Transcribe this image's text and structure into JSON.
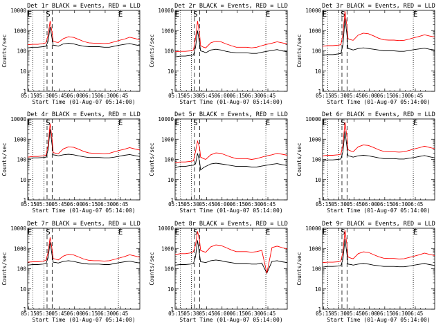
{
  "colors": {
    "events": "#000000",
    "lld": "#ff0000",
    "axes": "#000000",
    "background": "#ffffff"
  },
  "common": {
    "xlabel": "Start Time (01-Aug-07 05:14:00)",
    "ylabel": "Counts/sec",
    "xticks": [
      "05:15",
      "05:30",
      "05:45",
      "06:00",
      "06:15",
      "06:30",
      "06:45"
    ],
    "yticks": [
      "1",
      "10",
      "100",
      "1000",
      "10000"
    ],
    "markers": [
      "E",
      "S",
      "E"
    ]
  },
  "chart_data": [
    {
      "type": "line",
      "title": "Det 1r BLACK = Events, RED = LLD",
      "xlabel": "Start Time (01-Aug-07 05:14:00)",
      "ylabel": "Counts/sec",
      "yscale": "log",
      "ylim": [
        1,
        10000
      ],
      "xlim_minutes": [
        0,
        110
      ],
      "x_minutes": [
        0,
        5,
        10,
        15,
        18,
        20,
        22,
        24,
        25,
        28,
        30,
        35,
        40,
        45,
        50,
        55,
        60,
        65,
        70,
        75,
        80,
        85,
        90,
        95,
        100,
        105,
        110
      ],
      "series": [
        {
          "name": "Events",
          "values": [
            140,
            150,
            150,
            160,
            170,
            300,
            1500,
            400,
            190,
            180,
            170,
            220,
            240,
            220,
            190,
            170,
            160,
            160,
            160,
            150,
            150,
            170,
            190,
            210,
            230,
            200,
            180
          ]
        },
        {
          "name": "LLD",
          "values": [
            200,
            210,
            210,
            230,
            250,
            600,
            3000,
            800,
            300,
            270,
            260,
            400,
            500,
            460,
            370,
            290,
            250,
            240,
            240,
            230,
            240,
            280,
            330,
            380,
            470,
            410,
            350
          ]
        }
      ],
      "vlines": {
        "dotted_minutes": [
          5,
          16,
          89
        ],
        "dashed_minutes": [
          19,
          24
        ]
      }
    },
    {
      "type": "line",
      "title": "Det 2r BLACK = Events, RED = LLD",
      "xlabel": "Start Time (01-Aug-07 05:14:00)",
      "ylabel": "Counts/sec",
      "yscale": "log",
      "ylim": [
        1,
        10000
      ],
      "xlim_minutes": [
        0,
        110
      ],
      "x_minutes": [
        0,
        5,
        10,
        15,
        18,
        20,
        22,
        24,
        25,
        28,
        30,
        35,
        40,
        45,
        50,
        55,
        60,
        65,
        70,
        75,
        80,
        85,
        90,
        95,
        100,
        105,
        110
      ],
      "series": [
        {
          "name": "Events",
          "values": [
            50,
            55,
            55,
            60,
            62,
            150,
            1000,
            250,
            100,
            90,
            80,
            110,
            120,
            110,
            95,
            85,
            80,
            80,
            80,
            75,
            75,
            85,
            95,
            105,
            115,
            100,
            90
          ]
        },
        {
          "name": "LLD",
          "values": [
            90,
            95,
            95,
            100,
            110,
            400,
            3000,
            700,
            180,
            150,
            140,
            250,
            300,
            280,
            220,
            180,
            150,
            150,
            150,
            140,
            150,
            180,
            210,
            240,
            280,
            250,
            220
          ]
        }
      ],
      "vlines": {
        "dotted_minutes": [
          5,
          16,
          89
        ],
        "dashed_minutes": [
          19,
          24
        ]
      }
    },
    {
      "type": "line",
      "title": "Det 3r BLACK = Events, RED = LLD",
      "xlabel": "Start Time (01-Aug-07 05:14:00)",
      "ylabel": "Counts/sec",
      "yscale": "log",
      "ylim": [
        1,
        10000
      ],
      "xlim_minutes": [
        0,
        110
      ],
      "x_minutes": [
        0,
        5,
        10,
        15,
        18,
        20,
        22,
        24,
        25,
        28,
        30,
        35,
        40,
        45,
        50,
        55,
        60,
        65,
        70,
        75,
        80,
        85,
        90,
        95,
        100,
        105,
        110
      ],
      "series": [
        {
          "name": "Events",
          "values": [
            60,
            65,
            65,
            70,
            75,
            200,
            4000,
            600,
            130,
            120,
            110,
            130,
            140,
            130,
            120,
            110,
            100,
            100,
            100,
            95,
            95,
            105,
            115,
            125,
            135,
            120,
            110
          ]
        },
        {
          "name": "LLD",
          "values": [
            170,
            180,
            180,
            190,
            200,
            700,
            9000,
            1500,
            400,
            350,
            330,
            600,
            750,
            700,
            550,
            420,
            350,
            340,
            340,
            320,
            330,
            380,
            450,
            520,
            620,
            540,
            480
          ]
        }
      ],
      "vlines": {
        "dotted_minutes": [
          5,
          16,
          89
        ],
        "dashed_minutes": [
          19,
          24
        ]
      }
    },
    {
      "type": "line",
      "title": "Det 4r BLACK = Events, RED = LLD",
      "xlabel": "Start Time (01-Aug-07 05:14:00)",
      "ylabel": "Counts/sec",
      "yscale": "log",
      "ylim": [
        1,
        10000
      ],
      "xlim_minutes": [
        0,
        110
      ],
      "x_minutes": [
        0,
        5,
        10,
        15,
        18,
        20,
        22,
        24,
        25,
        28,
        30,
        35,
        40,
        45,
        50,
        55,
        60,
        65,
        70,
        75,
        80,
        85,
        90,
        95,
        100,
        105,
        110
      ],
      "series": [
        {
          "name": "Events",
          "values": [
            110,
            120,
            120,
            125,
            130,
            300,
            3000,
            500,
            170,
            160,
            150,
            170,
            180,
            170,
            150,
            135,
            125,
            125,
            125,
            120,
            120,
            130,
            145,
            160,
            175,
            155,
            140
          ]
        },
        {
          "name": "LLD",
          "values": [
            130,
            140,
            140,
            150,
            160,
            500,
            6000,
            1000,
            220,
            200,
            190,
            330,
            420,
            400,
            320,
            250,
            210,
            200,
            200,
            190,
            200,
            240,
            280,
            320,
            380,
            330,
            290
          ]
        }
      ],
      "vlines": {
        "dotted_minutes": [
          5,
          16,
          89
        ],
        "dashed_minutes": [
          19,
          24
        ]
      }
    },
    {
      "type": "line",
      "title": "Det 5r BLACK = Events, RED = LLD",
      "xlabel": "Start Time (01-Aug-07 05:14:00)",
      "ylabel": "Counts/sec",
      "yscale": "log",
      "ylim": [
        1,
        10000
      ],
      "xlim_minutes": [
        0,
        110
      ],
      "x_minutes": [
        0,
        5,
        10,
        15,
        18,
        20,
        22,
        24,
        25,
        28,
        30,
        35,
        40,
        45,
        50,
        55,
        60,
        65,
        70,
        75,
        80,
        85,
        90,
        95,
        100,
        105,
        110
      ],
      "series": [
        {
          "name": "Events",
          "values": [
            40,
            45,
            45,
            50,
            52,
            60,
            200,
            80,
            30,
            40,
            45,
            60,
            65,
            60,
            55,
            50,
            45,
            45,
            45,
            42,
            42,
            47,
            52,
            57,
            62,
            55,
            50
          ]
        },
        {
          "name": "LLD",
          "values": [
            70,
            75,
            75,
            80,
            85,
            250,
            800,
            400,
            130,
            110,
            100,
            170,
            210,
            200,
            160,
            130,
            110,
            110,
            110,
            100,
            110,
            130,
            150,
            170,
            200,
            180,
            160
          ]
        }
      ],
      "vlines": {
        "dotted_minutes": [
          5,
          16,
          89
        ],
        "dashed_minutes": [
          19,
          24
        ]
      }
    },
    {
      "type": "line",
      "title": "Det 6r BLACK = Events, RED = LLD",
      "xlabel": "Start Time (01-Aug-07 05:14:00)",
      "ylabel": "Counts/sec",
      "yscale": "log",
      "ylim": [
        1,
        10000
      ],
      "xlim_minutes": [
        0,
        110
      ],
      "x_minutes": [
        0,
        5,
        10,
        15,
        18,
        20,
        22,
        24,
        25,
        28,
        30,
        35,
        40,
        45,
        50,
        55,
        60,
        65,
        70,
        75,
        80,
        85,
        90,
        95,
        100,
        105,
        110
      ],
      "series": [
        {
          "name": "Events",
          "values": [
            90,
            95,
            95,
            100,
            105,
            250,
            2500,
            400,
            150,
            140,
            130,
            150,
            160,
            150,
            135,
            120,
            110,
            110,
            110,
            105,
            105,
            115,
            125,
            140,
            155,
            135,
            120
          ]
        },
        {
          "name": "LLD",
          "values": [
            150,
            160,
            160,
            170,
            180,
            550,
            7000,
            1200,
            300,
            260,
            240,
            420,
            520,
            490,
            390,
            300,
            250,
            240,
            240,
            230,
            240,
            280,
            330,
            380,
            450,
            390,
            340
          ]
        }
      ],
      "vlines": {
        "dotted_minutes": [
          5,
          16,
          89
        ],
        "dashed_minutes": [
          19,
          24
        ]
      }
    },
    {
      "type": "line",
      "title": "Det 7r BLACK = Events, RED = LLD",
      "xlabel": "Start Time (01-Aug-07 05:14:00)",
      "ylabel": "Counts/sec",
      "yscale": "log",
      "ylim": [
        1,
        10000
      ],
      "xlim_minutes": [
        0,
        110
      ],
      "x_minutes": [
        0,
        5,
        10,
        15,
        18,
        20,
        22,
        24,
        25,
        28,
        30,
        35,
        40,
        45,
        50,
        55,
        60,
        65,
        70,
        75,
        80,
        85,
        90,
        95,
        100,
        105,
        110
      ],
      "series": [
        {
          "name": "Events",
          "values": [
            150,
            160,
            160,
            170,
            180,
            350,
            2000,
            450,
            210,
            200,
            190,
            230,
            250,
            230,
            200,
            180,
            170,
            170,
            170,
            160,
            160,
            180,
            200,
            220,
            240,
            210,
            190
          ]
        },
        {
          "name": "LLD",
          "values": [
            210,
            220,
            220,
            240,
            260,
            650,
            3500,
            900,
            320,
            290,
            270,
            420,
            520,
            480,
            380,
            300,
            260,
            250,
            250,
            240,
            250,
            290,
            340,
            400,
            490,
            430,
            370
          ]
        }
      ],
      "vlines": {
        "dotted_minutes": [
          5,
          16,
          89
        ],
        "dashed_minutes": [
          19,
          24
        ]
      }
    },
    {
      "type": "line",
      "title": "Det 8r BLACK = Events, RED = LLD",
      "xlabel": "Start Time (01-Aug-07 05:14:00)",
      "ylabel": "Counts/sec",
      "yscale": "log",
      "ylim": [
        1,
        10000
      ],
      "xlim_minutes": [
        0,
        110
      ],
      "x_minutes": [
        0,
        5,
        10,
        15,
        18,
        20,
        22,
        24,
        25,
        28,
        30,
        35,
        40,
        45,
        50,
        55,
        60,
        65,
        70,
        75,
        80,
        85,
        90,
        95,
        100,
        105,
        110
      ],
      "series": [
        {
          "name": "Events",
          "values": [
            150,
            160,
            160,
            170,
            180,
            400,
            2500,
            500,
            220,
            210,
            200,
            250,
            270,
            250,
            220,
            200,
            180,
            180,
            180,
            170,
            170,
            190,
            60,
            230,
            250,
            220,
            200
          ]
        },
        {
          "name": "LLD",
          "values": [
            500,
            550,
            550,
            600,
            700,
            1500,
            7000,
            2500,
            800,
            700,
            650,
            1200,
            1500,
            1400,
            1100,
            850,
            700,
            700,
            700,
            650,
            700,
            800,
            60,
            1100,
            1300,
            1100,
            950
          ]
        }
      ],
      "vlines": {
        "dotted_minutes": [
          5,
          16,
          89
        ],
        "dashed_minutes": [
          19,
          24
        ]
      }
    },
    {
      "type": "line",
      "title": "Det 9r BLACK = Events, RED = LLD",
      "xlabel": "Start Time (01-Aug-07 05:14:00)",
      "ylabel": "Counts/sec",
      "yscale": "log",
      "ylim": [
        1,
        10000
      ],
      "xlim_minutes": [
        0,
        110
      ],
      "x_minutes": [
        0,
        5,
        10,
        15,
        18,
        20,
        22,
        24,
        25,
        28,
        30,
        35,
        40,
        45,
        50,
        55,
        60,
        65,
        70,
        75,
        80,
        85,
        90,
        95,
        100,
        105,
        110
      ],
      "series": [
        {
          "name": "Events",
          "values": [
            120,
            130,
            130,
            135,
            140,
            300,
            3000,
            500,
            170,
            160,
            150,
            170,
            180,
            170,
            150,
            140,
            130,
            130,
            130,
            125,
            125,
            135,
            150,
            165,
            180,
            160,
            145
          ]
        },
        {
          "name": "LLD",
          "values": [
            200,
            210,
            210,
            220,
            240,
            700,
            8000,
            1400,
            380,
            330,
            310,
            550,
            680,
            640,
            500,
            390,
            330,
            320,
            320,
            300,
            310,
            360,
            420,
            490,
            590,
            510,
            450
          ]
        }
      ],
      "vlines": {
        "dotted_minutes": [
          5,
          16,
          89
        ],
        "dashed_minutes": [
          19,
          24
        ]
      }
    }
  ]
}
